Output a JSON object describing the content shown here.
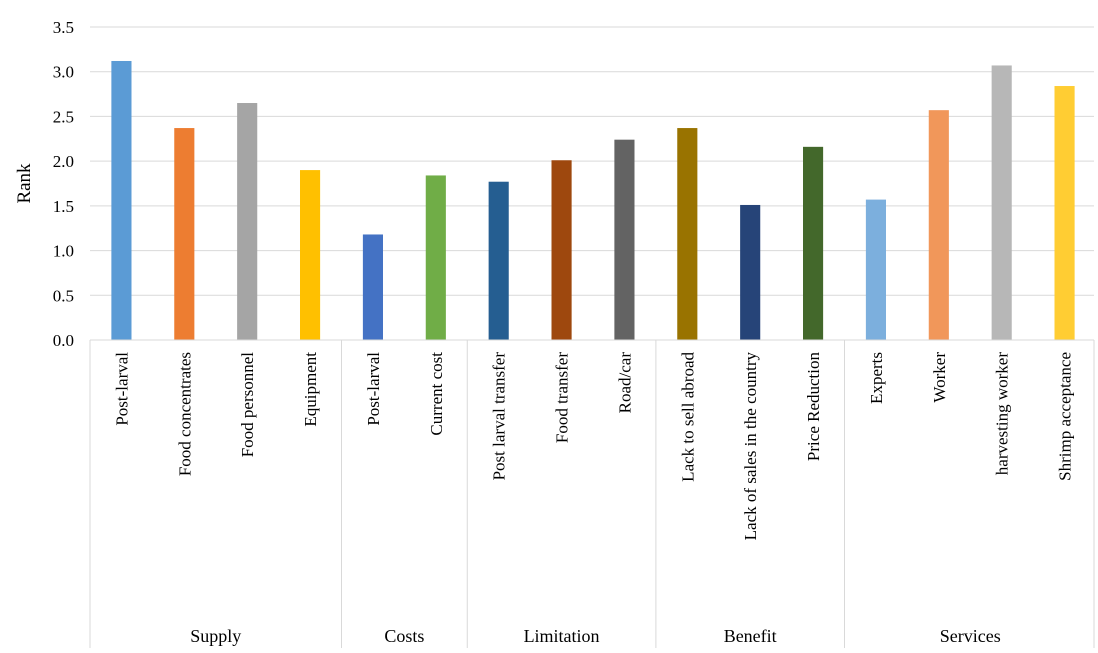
{
  "chart_data": {
    "type": "bar",
    "ylabel": "Rank",
    "xlabel": "",
    "ylim": [
      0,
      3.5
    ],
    "yticks": [
      "0.0",
      "0.5",
      "1.0",
      "1.5",
      "2.0",
      "2.5",
      "3.0",
      "3.5"
    ],
    "grid": "horizontal",
    "groups": [
      {
        "label": "Supply",
        "categories": [
          {
            "label": "Post-larval",
            "value": 3.12,
            "color": "#5B9BD5"
          },
          {
            "label": "Food concentrates",
            "value": 2.37,
            "color": "#ED7D31"
          },
          {
            "label": "Food personnel",
            "value": 2.65,
            "color": "#A5A5A5"
          },
          {
            "label": "Equipment",
            "value": 1.9,
            "color": "#FFC000"
          }
        ]
      },
      {
        "label": "Costs",
        "categories": [
          {
            "label": "Post-larval",
            "value": 1.18,
            "color": "#4472C4"
          },
          {
            "label": "Current cost",
            "value": 1.84,
            "color": "#70AD47"
          }
        ]
      },
      {
        "label": "Limitation",
        "categories": [
          {
            "label": "Post larval transfer",
            "value": 1.77,
            "color": "#255E91"
          },
          {
            "label": "Food transfer",
            "value": 2.01,
            "color": "#9E480E"
          },
          {
            "label": "Road/car",
            "value": 2.24,
            "color": "#636363"
          }
        ]
      },
      {
        "label": "Benefit",
        "categories": [
          {
            "label": "Lack to sell abroad",
            "value": 2.37,
            "color": "#997300"
          },
          {
            "label": "Lack of sales in the country",
            "value": 1.51,
            "color": "#264478"
          },
          {
            "label": "Price Reduction",
            "value": 2.16,
            "color": "#43682B"
          }
        ]
      },
      {
        "label": "Services",
        "categories": [
          {
            "label": "Experts",
            "value": 1.57,
            "color": "#7CAFDD"
          },
          {
            "label": "Worker",
            "value": 2.57,
            "color": "#F1975A"
          },
          {
            "label": "harvesting worker",
            "value": 3.07,
            "color": "#B7B7B7"
          },
          {
            "label": "Shrimp acceptance",
            "value": 2.84,
            "color": "#FFCD33"
          }
        ]
      }
    ]
  }
}
